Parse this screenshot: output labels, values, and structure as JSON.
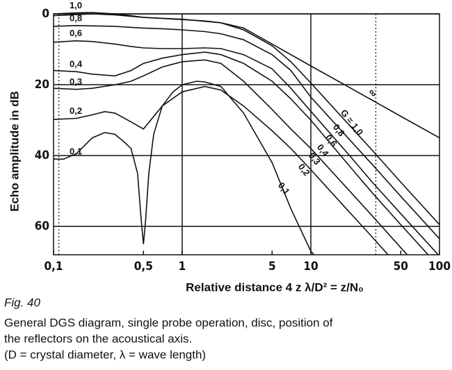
{
  "chart_data": {
    "type": "line",
    "x_scale": "log",
    "y_inverted": true,
    "color": "#111111",
    "xlim": [
      0.1,
      100
    ],
    "ylim": [
      0,
      68
    ],
    "xticks": [
      {
        "value": 0.1,
        "label": "0,1"
      },
      {
        "value": 0.5,
        "label": "0,5"
      },
      1,
      5,
      10,
      50,
      100
    ],
    "yticks": [
      0,
      20,
      40,
      60
    ],
    "x_gridlines": [
      1,
      10
    ],
    "x_dotted_lines": [
      0.11,
      32
    ],
    "y_label": "Echo amplitude in dB",
    "x_label": "Relative distance 4 z λ/D² = z/N₀",
    "figure_label": "Fig. 40",
    "caption_lines": [
      "General DGS diagram, single probe operation, disc, position of",
      "the reflectors on the acoustical axis.",
      "(D = crystal diameter, λ = wave length)"
    ],
    "series": [
      {
        "name": "∞",
        "x": [
          0.1,
          0.2,
          0.3,
          0.5,
          1,
          2,
          3,
          5,
          10,
          20,
          50,
          100
        ],
        "values": [
          0.5,
          0,
          0.3,
          1,
          1.5,
          2.5,
          4,
          8.5,
          14.7,
          20.8,
          28.9,
          35
        ]
      },
      {
        "name": "1,0",
        "end_label": "G = 1,0",
        "x": [
          0.1,
          0.15,
          0.2,
          0.3,
          0.4,
          0.5,
          0.7,
          1,
          1.5,
          2,
          3,
          5,
          7,
          10,
          20,
          30,
          50,
          100
        ],
        "values": [
          0,
          -0.3,
          -0.4,
          0,
          0.5,
          1,
          1.3,
          1.6,
          2,
          2.5,
          4.5,
          9,
          13.5,
          19.5,
          31.5,
          38.5,
          47.5,
          59.5
        ]
      },
      {
        "name": "0,8",
        "end_label": "0,8",
        "x": [
          0.1,
          0.15,
          0.2,
          0.3,
          0.4,
          0.5,
          0.7,
          1,
          1.5,
          2,
          3,
          5,
          7,
          10,
          20,
          30,
          50,
          100
        ],
        "values": [
          3.5,
          3.3,
          3.4,
          3.5,
          3.8,
          4,
          4.2,
          4.5,
          5,
          5.6,
          7.3,
          11.5,
          16,
          23.5,
          35.5,
          42.5,
          51.5,
          63.5
        ]
      },
      {
        "name": "0,6",
        "end_label": "0,6",
        "x": [
          0.1,
          0.15,
          0.2,
          0.3,
          0.4,
          0.5,
          0.7,
          1,
          1.5,
          2,
          3,
          5,
          7,
          10,
          20,
          30,
          50,
          100
        ],
        "values": [
          8,
          7.6,
          7.8,
          8.5,
          9.2,
          9.6,
          9.8,
          9.8,
          9.6,
          9.8,
          11.5,
          15.5,
          21,
          27.5,
          40,
          47.5,
          56.4,
          68.4
        ]
      },
      {
        "name": "0,4",
        "end_label": "0,4",
        "x": [
          0.1,
          0.15,
          0.2,
          0.3,
          0.4,
          0.5,
          0.7,
          1,
          1.5,
          2,
          3,
          5,
          7,
          10,
          20,
          30,
          50,
          100
        ],
        "values": [
          16,
          16.3,
          17,
          17.5,
          16,
          14,
          12.5,
          11.5,
          10.8,
          11.5,
          14,
          19,
          24,
          30,
          43,
          50.5,
          59.5,
          71.5
        ]
      },
      {
        "name": "0,3",
        "end_label": "0,3",
        "x": [
          0.1,
          0.15,
          0.2,
          0.3,
          0.4,
          0.5,
          0.7,
          1,
          1.5,
          2,
          3,
          5,
          7,
          10,
          20,
          30,
          50,
          100
        ],
        "values": [
          21,
          21.3,
          21,
          20,
          19,
          17.5,
          15,
          13.5,
          13,
          14,
          19,
          27,
          32.5,
          38,
          50,
          57,
          66,
          78
        ]
      },
      {
        "name": "0,2",
        "end_label": "0,2",
        "x": [
          0.1,
          0.15,
          0.2,
          0.25,
          0.3,
          0.4,
          0.5,
          0.7,
          1,
          1.5,
          2,
          3,
          5,
          7,
          10,
          20,
          30,
          50
        ],
        "values": [
          29.8,
          29.5,
          28.5,
          27.6,
          28,
          30.5,
          32.5,
          26,
          22,
          20.5,
          21.5,
          26,
          33,
          38,
          44,
          56,
          63,
          72
        ]
      },
      {
        "name": "0,1",
        "end_label": "0,1",
        "x": [
          0.1,
          0.12,
          0.15,
          0.2,
          0.25,
          0.3,
          0.35,
          0.4,
          0.45,
          0.48,
          0.5,
          0.52,
          0.55,
          0.6,
          0.7,
          0.85,
          1,
          1.3,
          1.5,
          2,
          3,
          5,
          7,
          10,
          20
        ],
        "values": [
          41,
          41,
          39.5,
          35,
          33.5,
          34,
          36,
          38,
          45,
          58,
          65,
          58,
          45,
          34,
          26,
          22,
          20,
          19,
          19.2,
          20.5,
          28,
          42,
          55,
          67,
          79
        ]
      }
    ]
  }
}
